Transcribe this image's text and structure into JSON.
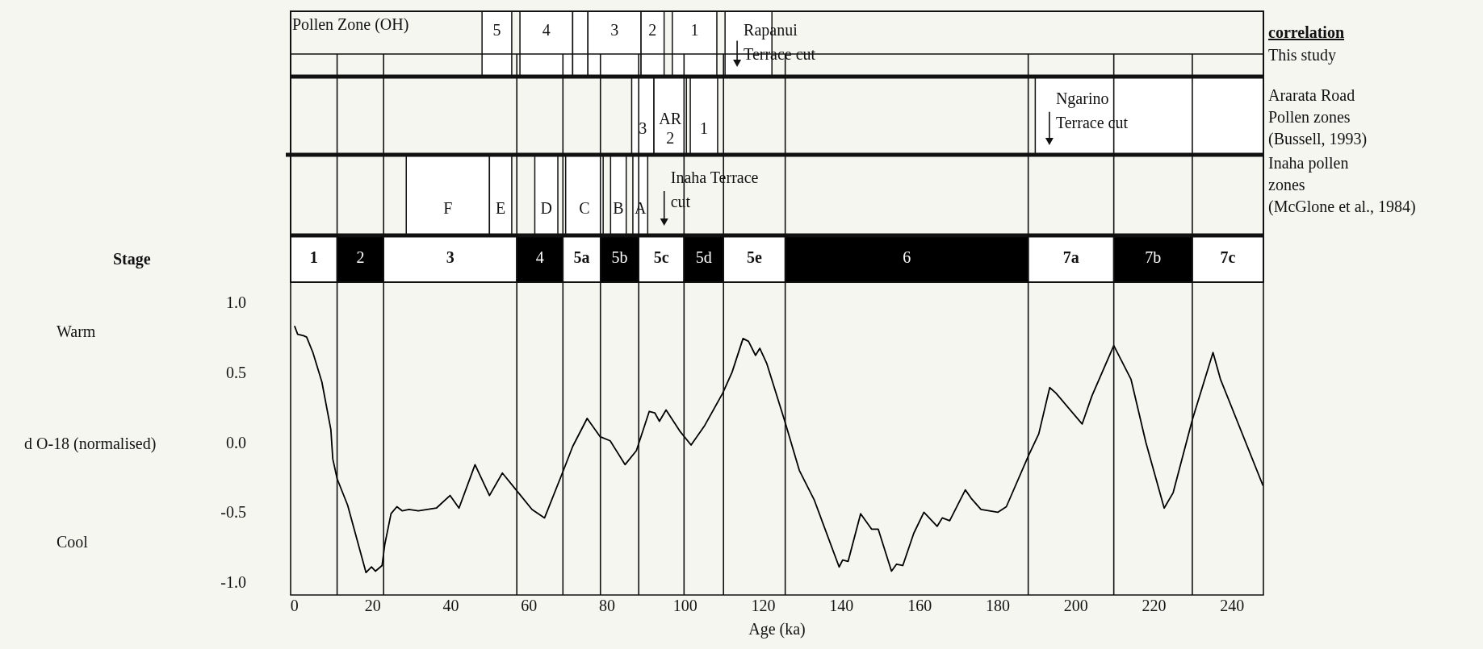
{
  "chart_data": {
    "type": "line",
    "title": "Pollen Zone (OH)",
    "xlabel": "Age (ka)",
    "ylabel": "d O-18 (normalised)",
    "xlim": [
      -1,
      248
    ],
    "ylim": [
      -1.08,
      2.78
    ],
    "xticks": [
      0,
      20,
      40,
      60,
      80,
      100,
      120,
      140,
      160,
      180,
      200,
      220,
      240
    ],
    "yticks": [
      {
        "value": -1,
        "label": "-1.0"
      },
      {
        "value": -0.5,
        "label": "-0.5"
      },
      {
        "value": 0,
        "label": "0.0"
      },
      {
        "value": 0.5,
        "label": "0.5"
      },
      {
        "value": 1,
        "label": "1.0"
      }
    ],
    "grid": false,
    "marker": "none",
    "line_style": "solid",
    "bands": [
      {
        "axis": "x",
        "from": 48,
        "to": 55.6,
        "label": "5",
        "color": "#ffffff"
      },
      {
        "axis": "x",
        "from": 57.7,
        "to": 71.2,
        "label": "4",
        "color": "#ffffff"
      },
      {
        "axis": "x",
        "from": 71.2,
        "to": 75.1,
        "color": "#ffffff"
      },
      {
        "axis": "x",
        "from": 75.1,
        "to": 88.7,
        "label": "3",
        "color": "#ffffff"
      },
      {
        "axis": "x",
        "from": 88.7,
        "to": 94.6,
        "label": "2",
        "color": "#ffffff"
      },
      {
        "axis": "x",
        "from": 96.7,
        "to": 108.1,
        "label": "1",
        "color": "#ffffff"
      },
      {
        "axis": "x",
        "from": 110.2,
        "to": 122.2,
        "color": "#ffffff"
      },
      {
        "axis": "x",
        "from": 86.3,
        "to": 92.0,
        "label": "3",
        "color": "#ffffff"
      },
      {
        "axis": "x",
        "from": 92.0,
        "to": 100.3,
        "label": "AR 2",
        "color": "#ffffff"
      },
      {
        "axis": "x",
        "from": 101.3,
        "to": 108.3,
        "label": "1",
        "color": "#ffffff"
      },
      {
        "axis": "x",
        "from": 189.6,
        "to": 248,
        "color": "#ffffff"
      },
      {
        "axis": "x",
        "from": 28.6,
        "to": 49.9,
        "label": "F",
        "color": "#ffffff"
      },
      {
        "axis": "x",
        "from": 49.9,
        "to": 55.6,
        "label": "E",
        "color": "#ffffff"
      },
      {
        "axis": "x",
        "from": 61.5,
        "to": 67.4,
        "label": "D",
        "color": "#ffffff"
      },
      {
        "axis": "x",
        "from": 69.4,
        "to": 79.0,
        "label": "C",
        "color": "#ffffff"
      },
      {
        "axis": "x",
        "from": 80.9,
        "to": 84.9,
        "label": "B",
        "color": "#ffffff"
      },
      {
        "axis": "x",
        "from": 86.6,
        "to": 90.4,
        "label": "A",
        "color": "#ffffff"
      },
      {
        "axis": "x",
        "from": -1,
        "to": 10.9,
        "label": "1",
        "color": "#ffffff"
      },
      {
        "axis": "x",
        "from": 10.9,
        "to": 22.8,
        "label": "2",
        "color": "#000000"
      },
      {
        "axis": "x",
        "from": 22.8,
        "to": 56.9,
        "label": "3",
        "color": "#ffffff"
      },
      {
        "axis": "x",
        "from": 56.9,
        "to": 68.7,
        "label": "4",
        "color": "#000000"
      },
      {
        "axis": "x",
        "from": 68.7,
        "to": 78.3,
        "label": "5a",
        "color": "#ffffff"
      },
      {
        "axis": "x",
        "from": 78.3,
        "to": 88.1,
        "label": "5b",
        "color": "#000000"
      },
      {
        "axis": "x",
        "from": 88.1,
        "to": 99.7,
        "label": "5c",
        "color": "#ffffff"
      },
      {
        "axis": "x",
        "from": 99.7,
        "to": 109.8,
        "label": "5d",
        "color": "#000000"
      },
      {
        "axis": "x",
        "from": 109.8,
        "to": 125.6,
        "label": "5e",
        "color": "#ffffff"
      },
      {
        "axis": "x",
        "from": 125.6,
        "to": 187.8,
        "label": "6",
        "color": "#000000"
      },
      {
        "axis": "x",
        "from": 187.8,
        "to": 209.7,
        "label": "7a",
        "color": "#ffffff"
      },
      {
        "axis": "x",
        "from": 209.7,
        "to": 229.8,
        "label": "7b",
        "color": "#000000"
      },
      {
        "axis": "x",
        "from": 229.8,
        "to": 248,
        "label": "7c",
        "color": "#ffffff"
      }
    ],
    "ref_lines": [
      {
        "axis": "x",
        "value": 10.9
      },
      {
        "axis": "x",
        "value": 22.8
      },
      {
        "axis": "x",
        "value": 56.9
      },
      {
        "axis": "x",
        "value": 68.7
      },
      {
        "axis": "x",
        "value": 78.3
      },
      {
        "axis": "x",
        "value": 88.1
      },
      {
        "axis": "x",
        "value": 99.7
      },
      {
        "axis": "x",
        "value": 109.8
      },
      {
        "axis": "x",
        "value": 125.6
      },
      {
        "axis": "x",
        "value": 187.8
      },
      {
        "axis": "x",
        "value": 209.7
      },
      {
        "axis": "x",
        "value": 229.8
      }
    ],
    "annotations": [
      "correlation",
      "This study",
      "Ararata Road",
      "Pollen zones",
      "(Bussell, 1993)",
      "Inaha pollen",
      "zones",
      "(McGlone et al., 1984)",
      "Stage",
      "Warm",
      "Cool",
      "Rapanui Terrace cut",
      "Ngarino Terrace cut",
      "Inaha Terrace cut"
    ],
    "series": [
      {
        "color": "#000000",
        "x": [
          0,
          0.8,
          2.3,
          3.1,
          4.7,
          7,
          9.3,
          9.8,
          10.9,
          13.6,
          18.3,
          19.7,
          20.7,
          22.4,
          23.1,
          24.7,
          26.2,
          27.6,
          29.3,
          31.7,
          36.3,
          39.8,
          42.1,
          46.2,
          49.9,
          53.2,
          57.3,
          60.8,
          64,
          68.7,
          71.2,
          74.9,
          78.2,
          80.8,
          84.6,
          87.5,
          90.8,
          92.2,
          93.4,
          95.1,
          98.6,
          101.5,
          105,
          109.6,
          112,
          114.8,
          116.2,
          118,
          119.1,
          120.9,
          125.6,
          129.2,
          133,
          139.4,
          140.3,
          141.7,
          144.9,
          147.7,
          149.4,
          152.8,
          154.1,
          155.7,
          158.5,
          161.1,
          164.5,
          165.8,
          167.7,
          171.7,
          173.2,
          175.7,
          180,
          182.2,
          187.8,
          190.5,
          193.3,
          194.9,
          201.6,
          204.1,
          209.7,
          214.1,
          217.9,
          222.6,
          224.9,
          229.8,
          235.1,
          237,
          247.9
        ],
        "values": [
          0.84,
          0.78,
          0.77,
          0.76,
          0.65,
          0.44,
          0.1,
          -0.11,
          -0.25,
          -0.44,
          -0.92,
          -0.88,
          -0.91,
          -0.87,
          -0.72,
          -0.5,
          -0.45,
          -0.48,
          -0.47,
          -0.48,
          -0.46,
          -0.37,
          -0.46,
          -0.15,
          -0.37,
          -0.21,
          -0.35,
          -0.47,
          -0.53,
          -0.2,
          -0.02,
          0.18,
          0.05,
          0.02,
          -0.15,
          -0.05,
          0.23,
          0.22,
          0.16,
          0.24,
          0.09,
          -0.01,
          0.13,
          0.36,
          0.51,
          0.75,
          0.73,
          0.63,
          0.68,
          0.57,
          0.15,
          -0.19,
          -0.4,
          -0.88,
          -0.83,
          -0.84,
          -0.5,
          -0.61,
          -0.61,
          -0.91,
          -0.86,
          -0.87,
          -0.64,
          -0.49,
          -0.59,
          -0.53,
          -0.55,
          -0.33,
          -0.39,
          -0.47,
          -0.49,
          -0.45,
          -0.09,
          0.07,
          0.4,
          0.36,
          0.14,
          0.34,
          0.7,
          0.46,
          0.01,
          -0.46,
          -0.35,
          0.17,
          0.65,
          0.46,
          -0.3
        ]
      }
    ]
  }
}
